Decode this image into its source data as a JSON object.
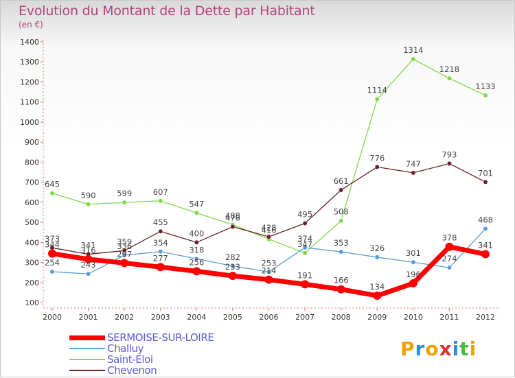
{
  "chart_data": {
    "type": "line",
    "title": "Evolution du Montant de la Dette par Habitant",
    "subtitle": "(en €)",
    "x": [
      "2000",
      "2001",
      "2002",
      "2003",
      "2004",
      "2005",
      "2006",
      "2007",
      "2008",
      "2009",
      "2010",
      "2011",
      "2012"
    ],
    "ylim": [
      100,
      1400
    ],
    "yticks": [
      100,
      200,
      300,
      400,
      500,
      600,
      700,
      800,
      900,
      1000,
      1100,
      1200,
      1300,
      1400
    ],
    "grid": false,
    "legend_position": "bottom-left",
    "series": [
      {
        "name": "SERMOISE-SUR-LOIRE",
        "color": "#ff0000",
        "values": [
          344,
          316,
          297,
          277,
          256,
          233,
          214,
          191,
          166,
          134,
          196,
          378,
          341
        ]
      },
      {
        "name": "Challuy",
        "color": "#5a9bd4",
        "values": [
          254,
          243,
          336,
          354,
          318,
          282,
          253,
          374,
          353,
          326,
          301,
          274,
          468
        ]
      },
      {
        "name": "Saint-Eloi",
        "color": "#7fd84a",
        "values": [
          645,
          590,
          599,
          607,
          547,
          488,
          416,
          347,
          508,
          1114,
          1314,
          1218,
          1133
        ]
      },
      {
        "name": "Chevenon",
        "color": "#6b1f24",
        "values": [
          373,
          341,
          359,
          455,
          400,
          478,
          428,
          495,
          661,
          776,
          747,
          793,
          701
        ]
      }
    ]
  },
  "logo": {
    "letters": [
      "P",
      "r",
      "o",
      "x",
      "i",
      "t",
      "i"
    ],
    "colors": [
      "#f0a000",
      "#2a8fd8",
      "#f0a000",
      "#e03030",
      "#2a8fd8",
      "#48b848",
      "#f0a000"
    ]
  }
}
